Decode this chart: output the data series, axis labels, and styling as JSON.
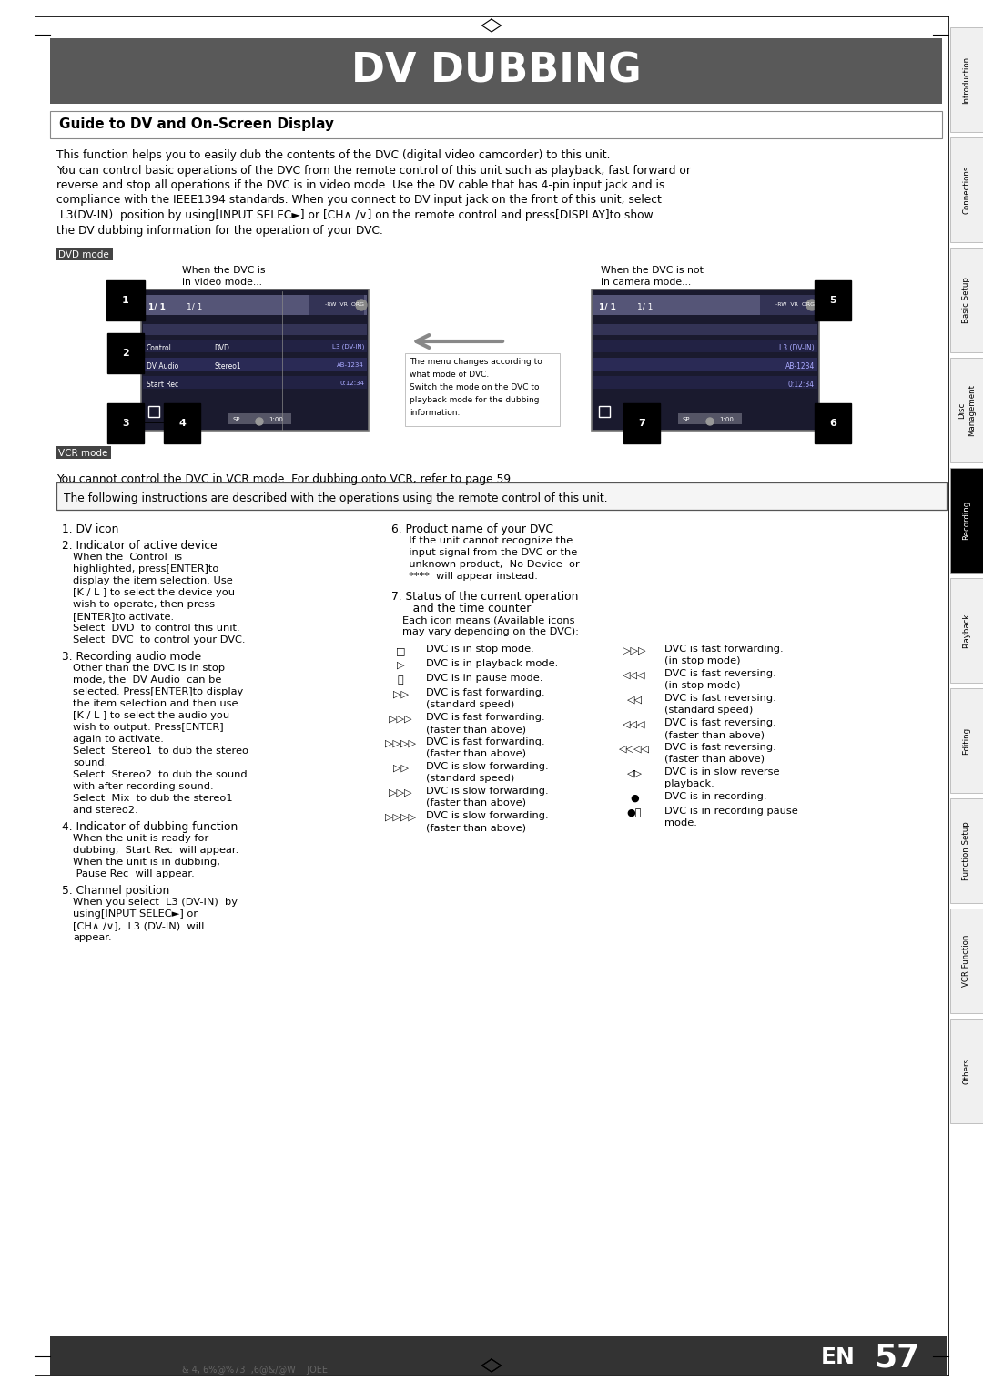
{
  "title": "DV DUBBING",
  "title_bg_color": "#595959",
  "title_text_color": "#ffffff",
  "subtitle": "Guide to DV and On-Screen Display",
  "page_bg": "#ffffff",
  "tab_labels": [
    "Introduction",
    "Connections",
    "Basic Setup",
    "Disc\nManagement",
    "Recording",
    "Playback",
    "Editing",
    "Function Setup",
    "VCR Function",
    "Others"
  ],
  "tab_active_index": 4,
  "tab_active_color": "#000000",
  "tab_inactive_color": "#f0f0f0",
  "tab_text_active": "#ffffff",
  "tab_text_inactive": "#000000",
  "page_number": "57",
  "page_en": "EN",
  "intro_text_lines": [
    "This function helps you to easily dub the contents of the DVC (digital video camcorder) to this unit.",
    "You can control basic operations of the DVC from the remote control of this unit such as playback, fast forward or",
    "reverse and stop all operations if the DVC is in video mode. Use the DV cable that has 4-pin input jack and is",
    "compliance with the IEEE1394 standards. When you connect to DV input jack on the front of this unit, select",
    " L3(DV-IN)  position by using[INPUT SELEC►] or [CH∧ /∨] on the remote control and press[DISPLAY]to show",
    "the DV dubbing information for the operation of your DVC."
  ],
  "dvd_mode_label": "DVD mode",
  "vcr_mode_label": "VCR mode",
  "vcr_mode_text": "You cannot control the DVC in VCR mode. For dubbing onto VCR, refer to page 59.",
  "notice_text": "The following instructions are described with the operations using the remote control of this unit.",
  "footer_text": "& 4, 6%@%73  ,6@&/@W    JOEE"
}
